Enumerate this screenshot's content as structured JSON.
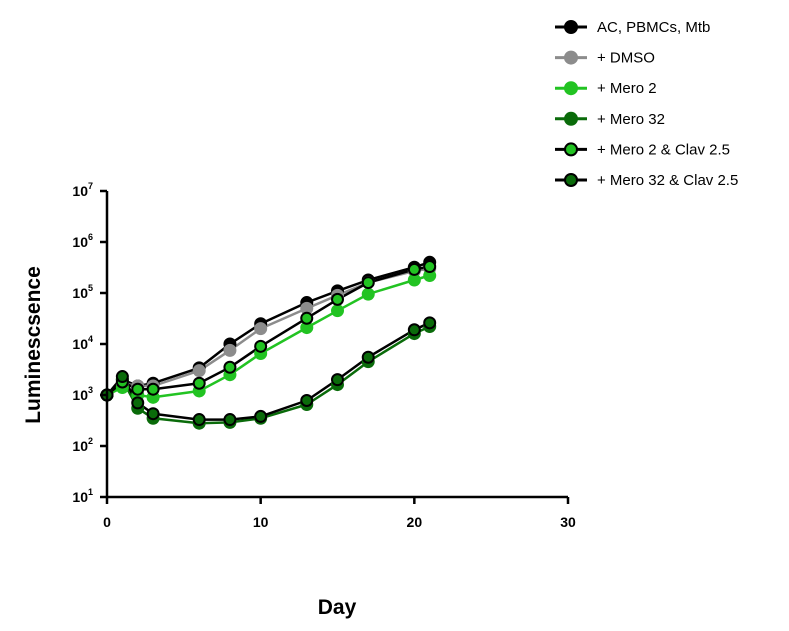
{
  "chart_data": {
    "type": "line",
    "title": "",
    "xlabel": "Day",
    "ylabel": "Luminescsence",
    "xlim": [
      0,
      30
    ],
    "ylim": [
      10,
      10000000
    ],
    "yscale": "log",
    "grid": false,
    "legend_position": "top-right",
    "x_ticks": [
      "0",
      "10",
      "20",
      "30"
    ],
    "y_ticks": [
      {
        "base": "10",
        "exp": "1"
      },
      {
        "base": "10",
        "exp": "2"
      },
      {
        "base": "10",
        "exp": "3"
      },
      {
        "base": "10",
        "exp": "4"
      },
      {
        "base": "10",
        "exp": "5"
      },
      {
        "base": "10",
        "exp": "6"
      },
      {
        "base": "10",
        "exp": "7"
      }
    ],
    "x": [
      0,
      1,
      2,
      3,
      6,
      8,
      10,
      13,
      15,
      17,
      20,
      21
    ],
    "series": [
      {
        "name": "AC, PBMCs, Mtb",
        "color": "#000000",
        "edge": "#000000",
        "values": [
          1000,
          2000,
          1500,
          1700,
          3400,
          10000,
          25000,
          65000,
          110000,
          180000,
          320000,
          400000
        ]
      },
      {
        "name": "+ DMSO",
        "color": "#8c8c8c",
        "edge": "#8c8c8c",
        "values": [
          1000,
          1700,
          1500,
          1500,
          3000,
          7500,
          20000,
          50000,
          90000,
          160000,
          270000,
          300000
        ]
      },
      {
        "name": "+ Mero 2",
        "color": "#22c322",
        "edge": "#22c322",
        "values": [
          1000,
          1400,
          1000,
          900,
          1200,
          2500,
          6500,
          21000,
          45000,
          95000,
          180000,
          220000
        ]
      },
      {
        "name": "+ Mero 32",
        "color": "#0a6b0a",
        "edge": "#0a6b0a",
        "values": [
          1000,
          2000,
          550,
          350,
          280,
          290,
          350,
          650,
          1600,
          4500,
          16000,
          22000
        ]
      },
      {
        "name": "+ Mero 2 & Clav 2.5",
        "color": "#22c322",
        "edge": "#000000",
        "values": [
          1000,
          1800,
          1300,
          1300,
          1700,
          3500,
          9000,
          32000,
          75000,
          160000,
          290000,
          330000
        ]
      },
      {
        "name": "+ Mero 32 & Clav 2.5",
        "color": "#0a6b0a",
        "edge": "#000000",
        "values": [
          1000,
          2300,
          700,
          430,
          330,
          330,
          380,
          780,
          2000,
          5500,
          19000,
          26000
        ]
      }
    ]
  }
}
